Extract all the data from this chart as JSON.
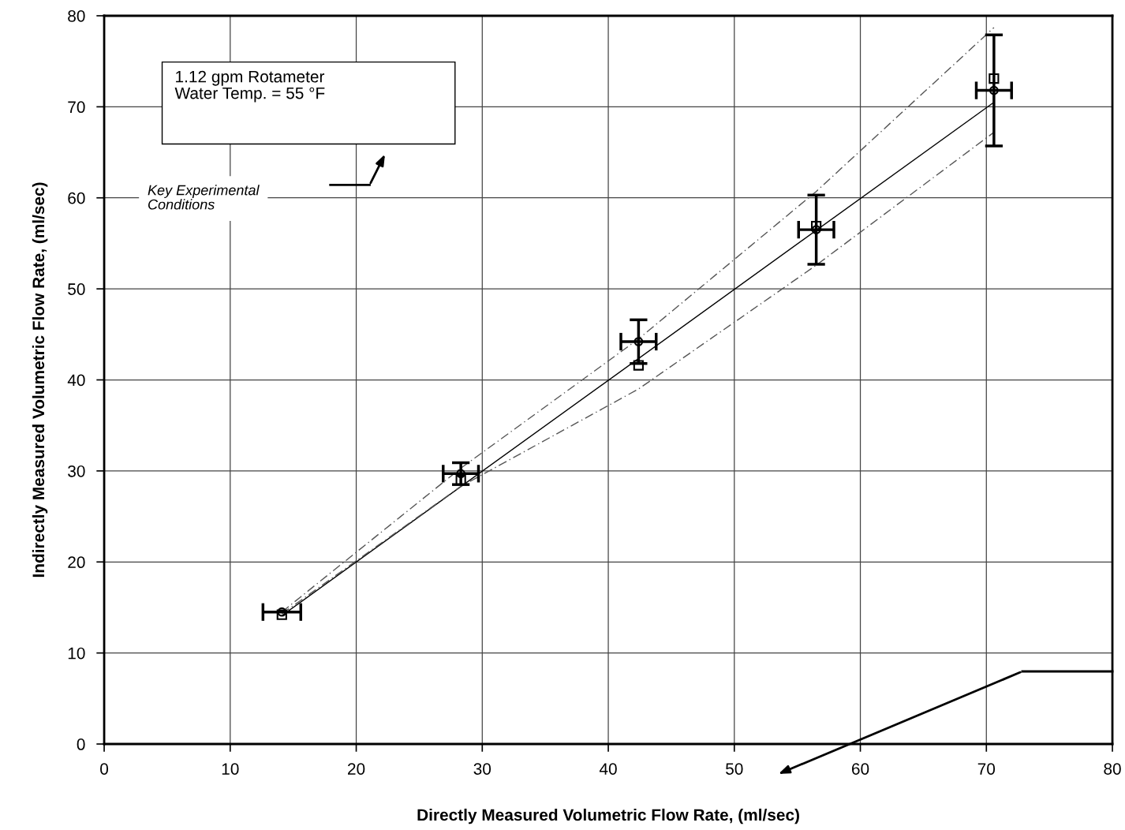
{
  "chart_data": {
    "type": "scatter",
    "xlabel": "Directly Measured Volumetric Flow Rate, (ml/sec)",
    "ylabel": "Indirectly Measured Volumetric Flow Rate, (ml/sec)",
    "xlim": [
      0,
      80
    ],
    "ylim": [
      0,
      80
    ],
    "xticks": [
      0,
      10,
      20,
      30,
      40,
      50,
      60,
      70,
      80
    ],
    "yticks": [
      0,
      10,
      20,
      30,
      40,
      50,
      60,
      70,
      80
    ],
    "grid": true,
    "legend": false,
    "series": [
      {
        "type": "line",
        "color": "#000000",
        "line_style": "solid",
        "marker": "none",
        "x": [
          14.1,
          70.6
        ],
        "values": [
          14.1,
          70.5
        ]
      },
      {
        "type": "line",
        "color": "#555555",
        "line_style": "dashed",
        "marker": "none",
        "x": [
          14.1,
          28.3,
          42.4,
          56.5,
          70.6
        ],
        "values": [
          14.5,
          30.3,
          44.5,
          60.7,
          78.7
        ]
      },
      {
        "type": "line",
        "color": "#555555",
        "line_style": "dashed",
        "marker": "none",
        "x": [
          14.1,
          28.3,
          42.4,
          56.5,
          70.6
        ],
        "values": [
          14.3,
          28.3,
          39.0,
          52.6,
          67.2
        ]
      },
      {
        "color": "#000000",
        "marker": "circle",
        "x": [
          14.1,
          28.3,
          42.4,
          56.5,
          70.6
        ],
        "values": [
          14.5,
          29.7,
          44.2,
          56.5,
          71.8
        ],
        "errors": [
          null,
          1.2,
          2.4,
          3.8,
          6.1
        ],
        "xerrors": [
          1.5,
          1.4,
          1.4,
          1.4,
          1.4
        ]
      },
      {
        "color": "#000000",
        "marker": "square",
        "x": [
          14.1,
          28.3,
          42.4,
          56.5,
          70.6
        ],
        "values": [
          14.2,
          29.0,
          41.6,
          56.9,
          73.1
        ]
      }
    ],
    "annotations": [
      "1.12 gpm Rotameter\nWater Temp. = 55 °F",
      "Key Experimental\nConditions"
    ]
  }
}
